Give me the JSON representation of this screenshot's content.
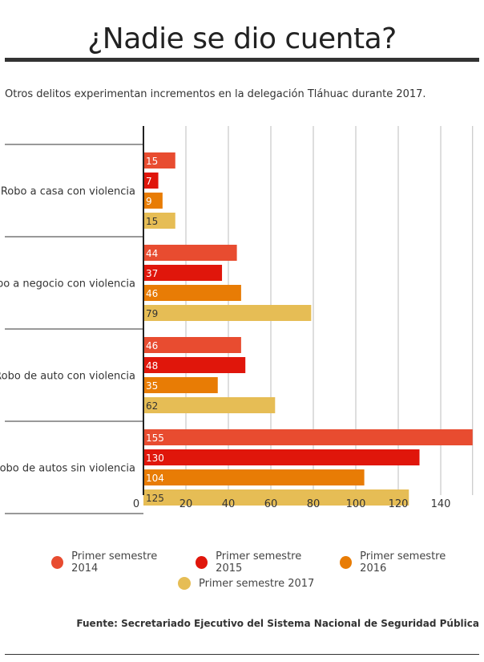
{
  "header": {
    "title": "¿Nadie se dio cuenta?",
    "subtitle": "Otros delitos experimentan incrementos en la delegación Tláhuac durante 2017."
  },
  "source": "Fuente: Secretariado Ejecutivo del Sistema Nacional de Seguridad Pública",
  "chart_data": {
    "type": "bar",
    "orientation": "horizontal",
    "categories": [
      "Robo a casa con violencia",
      "Robo a negocio con violencia",
      "Robo de auto con violencia",
      "Robo de autos sin violencia"
    ],
    "series": [
      {
        "name": "Primer semestre 2014",
        "color": "#e84c30",
        "values": [
          15,
          44,
          46,
          155
        ]
      },
      {
        "name": "Primer semestre 2015",
        "color": "#e0160b",
        "values": [
          7,
          37,
          48,
          130
        ]
      },
      {
        "name": "Primer semestre 2016",
        "color": "#e87c05",
        "values": [
          9,
          46,
          35,
          104
        ]
      },
      {
        "name": "Primer semestre 2017",
        "color": "#e6bd55",
        "values": [
          15,
          79,
          62,
          125
        ]
      }
    ],
    "xticks": [
      0,
      20,
      40,
      60,
      80,
      100,
      120,
      140
    ],
    "xlim": [
      0,
      155
    ],
    "grid": true,
    "legend_position": "bottom"
  }
}
